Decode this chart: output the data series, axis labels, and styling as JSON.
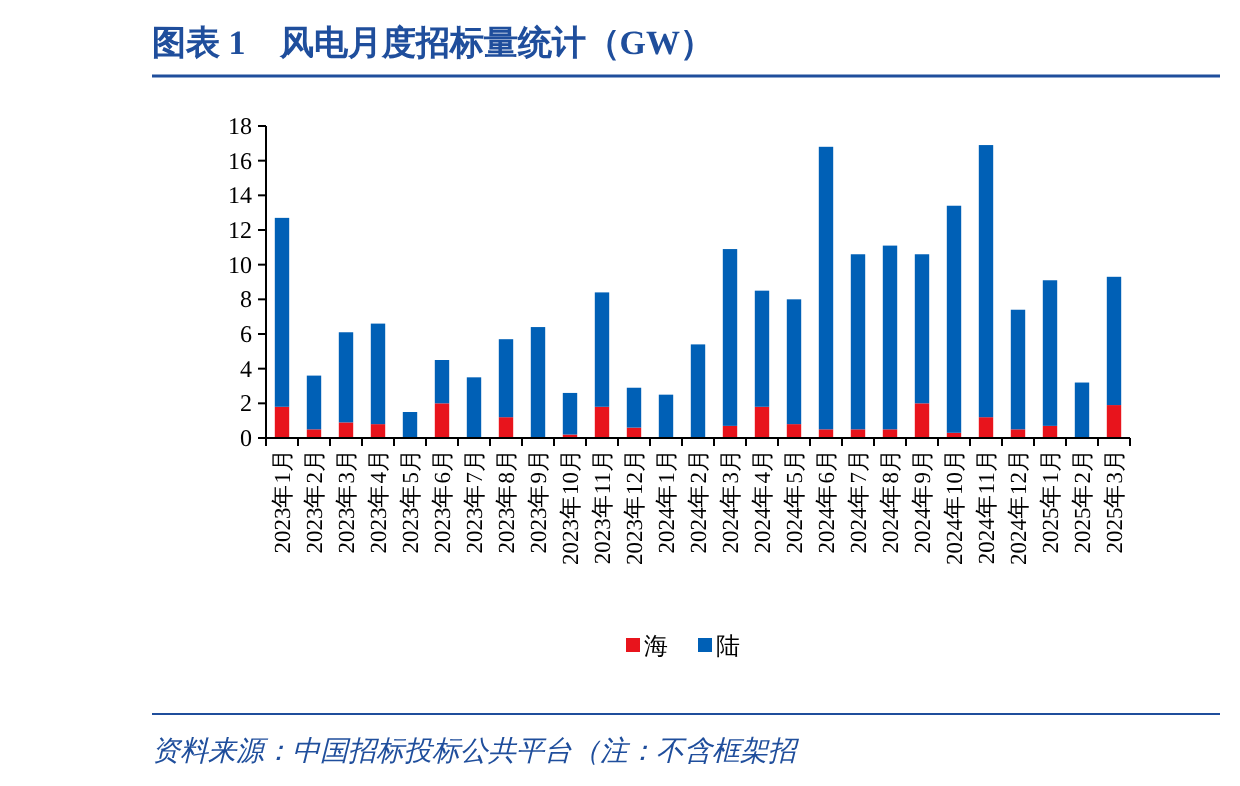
{
  "chart_data": {
    "type": "bar",
    "stacked": true,
    "title": "图表 1　风电月度招标量统计（GW）",
    "categories": [
      "2023年1月",
      "2023年2月",
      "2023年3月",
      "2023年4月",
      "2023年5月",
      "2023年6月",
      "2023年7月",
      "2023年8月",
      "2023年9月",
      "2023年10月",
      "2023年11月",
      "2023年12月",
      "2024年1月",
      "2024年2月",
      "2024年3月",
      "2024年4月",
      "2024年5月",
      "2024年6月",
      "2024年7月",
      "2024年8月",
      "2024年9月",
      "2024年10月",
      "2024年11月",
      "2024年12月",
      "2025年1月",
      "2025年2月",
      "2025年3月"
    ],
    "series": [
      {
        "name": "海",
        "color": "#e8141c",
        "values": [
          1.8,
          0.5,
          0.9,
          0.8,
          0,
          2.0,
          0,
          1.2,
          0,
          0.2,
          1.8,
          0.6,
          0,
          0,
          0.7,
          1.8,
          0.8,
          0.5,
          0.5,
          0.5,
          2.0,
          0.3,
          1.2,
          0.5,
          0.7,
          0,
          1.9
        ]
      },
      {
        "name": "陆",
        "color": "#0060b6",
        "values": [
          10.9,
          3.1,
          5.2,
          5.8,
          1.5,
          2.5,
          3.5,
          4.5,
          6.4,
          2.4,
          6.6,
          2.3,
          2.5,
          5.4,
          10.2,
          6.7,
          7.2,
          16.3,
          10.1,
          10.6,
          8.6,
          13.1,
          15.7,
          6.9,
          8.4,
          3.2,
          7.4
        ]
      }
    ],
    "ylim": [
      0,
      18
    ],
    "yticks": [
      0,
      2,
      4,
      6,
      8,
      10,
      12,
      14,
      16,
      18
    ],
    "grid": false,
    "legend": "bottom",
    "annotations": [
      "资料来源：中国招标投标公共平台（注：不含框架招"
    ]
  }
}
